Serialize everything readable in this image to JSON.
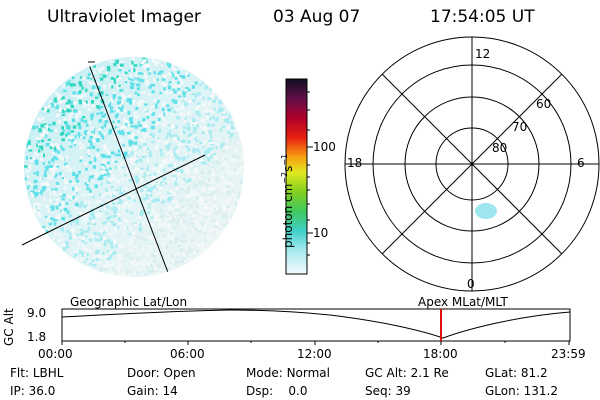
{
  "header": {
    "title": "Ultraviolet Imager",
    "date": "03 Aug 07",
    "time": "17:54:05 UT"
  },
  "colorbar": {
    "unit_label": "photon cm",
    "unit_exp1": "−2",
    "unit_mid": "s",
    "unit_exp2": "−1",
    "tick_100": "100",
    "tick_10": "10"
  },
  "polar_plot": {
    "mlt_top": "12",
    "mlt_left": "18",
    "mlt_right": "6",
    "mlt_bottom": "0",
    "lat_60": "60",
    "lat_70": "70",
    "lat_80": "80"
  },
  "altitude_panel": {
    "left_label": "Geographic Lat/Lon",
    "right_label": "Apex MLat/MLT",
    "axis_label": "GC Alt",
    "y_top": "9.0",
    "y_bottom": "1.8",
    "x_ticks": [
      "00:00",
      "06:00",
      "12:00",
      "18:00",
      "23:59"
    ],
    "marker_color": "#dd1111"
  },
  "footer": {
    "row1": [
      {
        "key": "Flt:",
        "val": "LBHL"
      },
      {
        "key": "Door:",
        "val": "Open"
      },
      {
        "key": "Mode:",
        "val": "Normal"
      },
      {
        "key": "GC Alt:",
        "val": "2.1 Re"
      },
      {
        "key": "GLat:",
        "val": "81.2"
      }
    ],
    "row2": [
      {
        "key": "IP:",
        "val": "36.0"
      },
      {
        "key": "Gain:",
        "val": "14"
      },
      {
        "key": "Dsp:",
        "val": "0.0"
      },
      {
        "key": "Seq:",
        "val": "39"
      },
      {
        "key": "GLon:",
        "val": "131.2"
      }
    ]
  }
}
